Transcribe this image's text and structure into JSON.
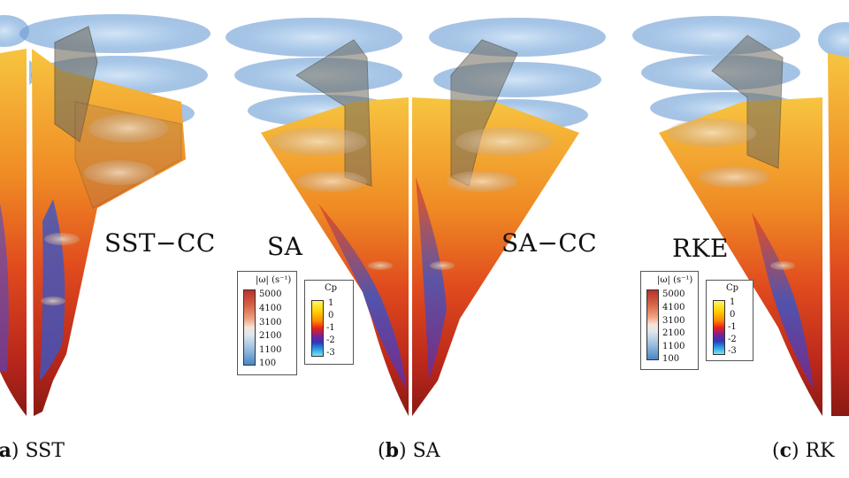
{
  "panels": [
    {
      "id": "a",
      "flow_label": "SST−CC",
      "caption_letter": "a",
      "caption_open": "(",
      "caption_close": ")",
      "caption_text": " SST"
    },
    {
      "id": "b",
      "flow_label_left": "SA",
      "flow_label_right": "SA−CC",
      "caption_open": "(",
      "caption_letter": "b",
      "caption_close": ")",
      "caption_text": " SA"
    },
    {
      "id": "c",
      "flow_label": "RKE",
      "caption_open": "(",
      "caption_letter": "c",
      "caption_close": ")",
      "caption_text": " RK"
    }
  ],
  "legends": {
    "omega": {
      "title": "|ω| (s⁻¹)",
      "ticks": [
        "5000",
        "4100",
        "3100",
        "2100",
        "1100",
        "100"
      ]
    },
    "cp": {
      "title": "Cp",
      "ticks": [
        "1",
        "0",
        "-1",
        "-2",
        "-3"
      ]
    }
  },
  "colors": {
    "vortex_blue": "#8ab4e0",
    "high_pressure": "#f0a020",
    "low_pressure": "#d23a1a",
    "core_blue": "#2a50c0",
    "wing_gray": "#6e6a5e"
  }
}
